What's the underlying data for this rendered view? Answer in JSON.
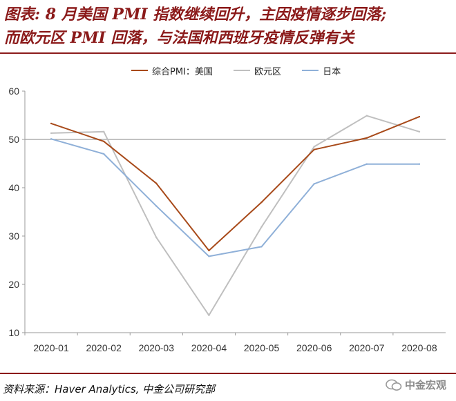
{
  "title": {
    "line1": "图表: 8 月美国 PMI 指数继续回升，主因疫情逐步回落;",
    "line2": "而欧元区 PMI 回落，与法国和西班牙疫情反弹有关"
  },
  "source": "资料来源：Haver Analytics, 中金公司研究部",
  "watermark": "中金宏观",
  "colors": {
    "title": "#8b1a1a",
    "us": "#a84a1a",
    "eu": "#bfbfbf",
    "jp": "#8fb0d8",
    "ref": "#9e9e9e"
  },
  "chart_data": {
    "type": "line",
    "categories": [
      "2020-01",
      "2020-02",
      "2020-03",
      "2020-04",
      "2020-05",
      "2020-06",
      "2020-07",
      "2020-08"
    ],
    "ylim": [
      10,
      60
    ],
    "yticks": [
      10,
      20,
      30,
      40,
      50,
      60
    ],
    "reference_line": 50,
    "grid": false,
    "legend_position": "top",
    "series": [
      {
        "name": "综合PMI：美国",
        "color": "#a84a1a",
        "values": [
          53.3,
          49.6,
          40.9,
          27.0,
          37.0,
          47.9,
          50.3,
          54.7
        ]
      },
      {
        "name": "欧元区",
        "color": "#bfbfbf",
        "values": [
          51.3,
          51.6,
          29.7,
          13.6,
          31.9,
          48.5,
          54.9,
          51.6
        ]
      },
      {
        "name": "日本",
        "color": "#8fb0d8",
        "values": [
          50.1,
          47.0,
          36.2,
          25.8,
          27.8,
          40.8,
          44.9,
          44.9
        ]
      }
    ]
  }
}
